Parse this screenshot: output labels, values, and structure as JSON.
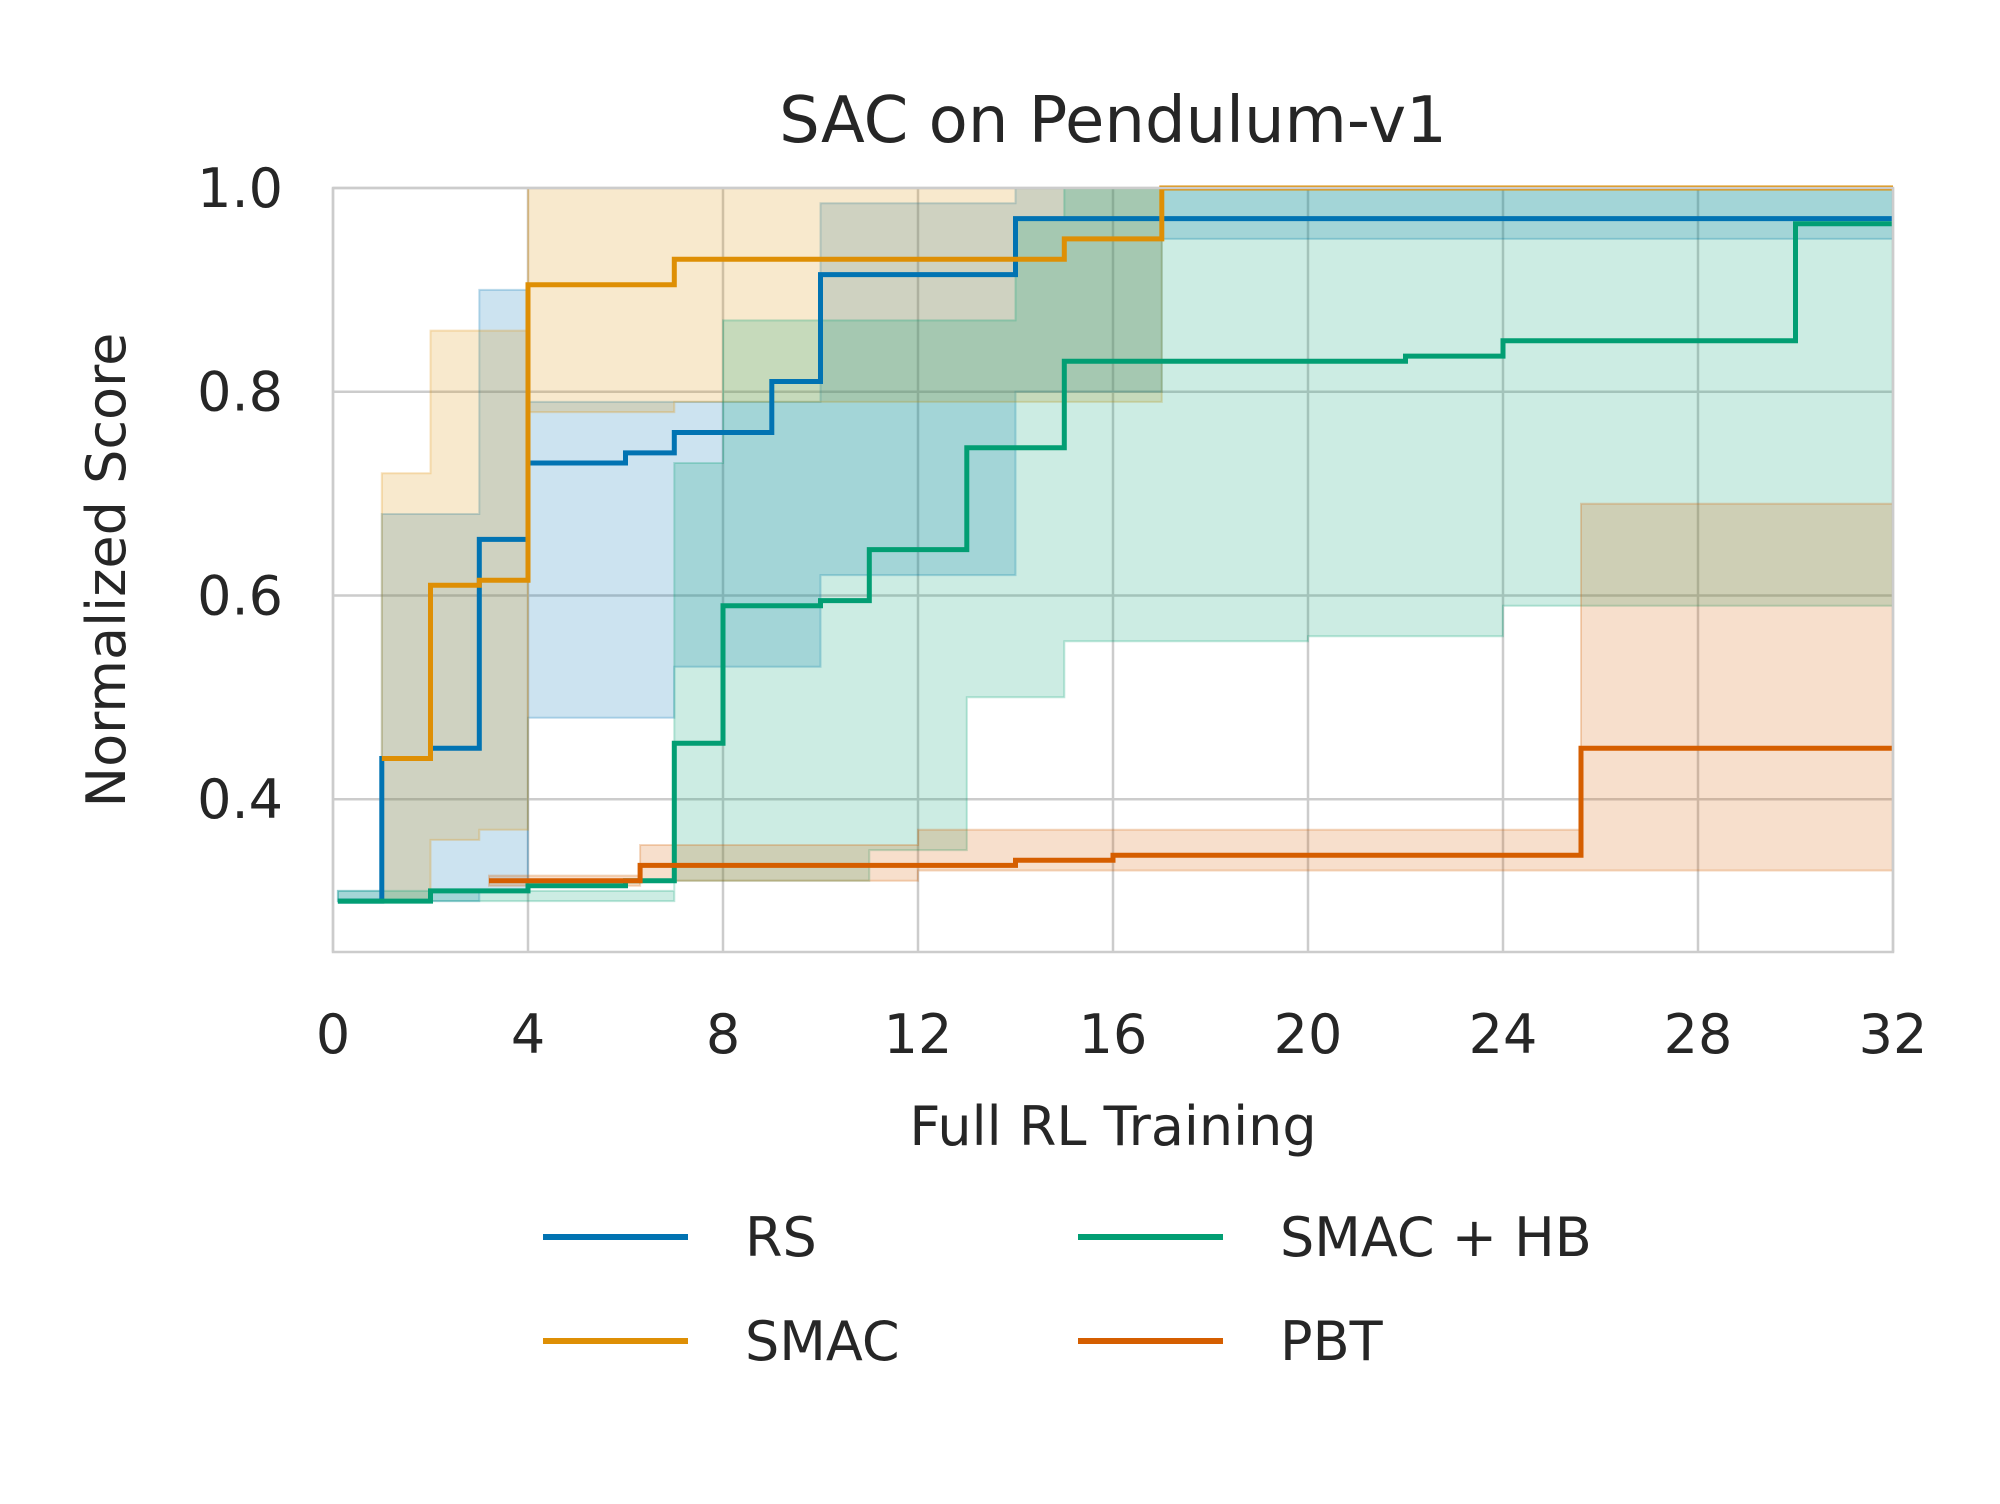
{
  "chart_data": {
    "type": "line",
    "title": "SAC on Pendulum-v1",
    "xlabel": "Full RL Training",
    "ylabel": "Normalized Score",
    "xlim": [
      0,
      32
    ],
    "ylim": [
      0.25,
      1.0
    ],
    "xticks": [
      0,
      4,
      8,
      12,
      16,
      20,
      24,
      28,
      32
    ],
    "yticks": [
      0.4,
      0.6,
      0.8,
      1.0
    ],
    "xtick_labels": [
      "0",
      "4",
      "8",
      "12",
      "16",
      "20",
      "24",
      "28",
      "32"
    ],
    "ytick_labels": [
      "0.4",
      "0.6",
      "0.8",
      "1.0"
    ],
    "grid": true,
    "legend_position": "bottom-center",
    "series": [
      {
        "name": "RS",
        "color": "#0173b2",
        "mean": [
          [
            0.1,
            0.3
          ],
          [
            1.0,
            0.44
          ],
          [
            2.0,
            0.45
          ],
          [
            3.0,
            0.655
          ],
          [
            4.0,
            0.73
          ],
          [
            6.0,
            0.74
          ],
          [
            7.0,
            0.76
          ],
          [
            9.0,
            0.81
          ],
          [
            10.0,
            0.915
          ],
          [
            14.0,
            0.97
          ],
          [
            32.0,
            0.97
          ]
        ],
        "lower": [
          [
            0.1,
            0.3
          ],
          [
            2.0,
            0.3
          ],
          [
            3.0,
            0.31
          ],
          [
            4.0,
            0.48
          ],
          [
            7.0,
            0.53
          ],
          [
            10.0,
            0.62
          ],
          [
            14.0,
            0.8
          ],
          [
            17.0,
            0.95
          ],
          [
            32.0,
            0.9
          ]
        ],
        "upper": [
          [
            0.1,
            0.31
          ],
          [
            1.0,
            0.68
          ],
          [
            3.0,
            0.9
          ],
          [
            4.0,
            0.79
          ],
          [
            7.0,
            0.79
          ],
          [
            10.0,
            0.985
          ],
          [
            14.0,
            1.0
          ],
          [
            32.0,
            1.0
          ]
        ]
      },
      {
        "name": "SMAC",
        "color": "#de8f05",
        "mean": [
          [
            1.0,
            0.44
          ],
          [
            2.0,
            0.61
          ],
          [
            3.0,
            0.615
          ],
          [
            4.0,
            0.905
          ],
          [
            7.0,
            0.93
          ],
          [
            14.0,
            0.93
          ],
          [
            15.0,
            0.95
          ],
          [
            17.0,
            1.0
          ],
          [
            32.0,
            1.0
          ]
        ],
        "lower": [
          [
            1.0,
            0.3
          ],
          [
            2.0,
            0.36
          ],
          [
            3.0,
            0.37
          ],
          [
            4.0,
            0.78
          ],
          [
            7.0,
            0.79
          ],
          [
            14.0,
            0.79
          ],
          [
            17.0,
            1.0
          ],
          [
            32.0,
            1.0
          ]
        ],
        "upper": [
          [
            1.0,
            0.72
          ],
          [
            2.0,
            0.86
          ],
          [
            4.0,
            1.0
          ],
          [
            32.0,
            1.0
          ]
        ]
      },
      {
        "name": "SMAC + HB",
        "color": "#029e73",
        "mean": [
          [
            0.1,
            0.3
          ],
          [
            2.0,
            0.31
          ],
          [
            4.0,
            0.315
          ],
          [
            6.0,
            0.32
          ],
          [
            7.0,
            0.455
          ],
          [
            8.0,
            0.59
          ],
          [
            10.0,
            0.595
          ],
          [
            11.0,
            0.645
          ],
          [
            13.0,
            0.745
          ],
          [
            15.0,
            0.83
          ],
          [
            20.0,
            0.83
          ],
          [
            22.0,
            0.835
          ],
          [
            24.0,
            0.85
          ],
          [
            30.0,
            0.965
          ],
          [
            32.0,
            0.965
          ]
        ],
        "lower": [
          [
            0.1,
            0.3
          ],
          [
            7.0,
            0.32
          ],
          [
            11.0,
            0.35
          ],
          [
            13.0,
            0.5
          ],
          [
            15.0,
            0.555
          ],
          [
            20.0,
            0.56
          ],
          [
            24.0,
            0.59
          ],
          [
            32.0,
            0.59
          ]
        ],
        "upper": [
          [
            0.1,
            0.31
          ],
          [
            7.0,
            0.73
          ],
          [
            8.0,
            0.87
          ],
          [
            10.0,
            0.87
          ],
          [
            14.0,
            0.97
          ],
          [
            15.0,
            1.0
          ],
          [
            32.0,
            1.0
          ]
        ]
      },
      {
        "name": "PBT",
        "color": "#d55e00",
        "mean": [
          [
            3.2,
            0.32
          ],
          [
            6.3,
            0.335
          ],
          [
            12.0,
            0.335
          ],
          [
            14.0,
            0.34
          ],
          [
            16.0,
            0.345
          ],
          [
            25.6,
            0.45
          ],
          [
            32.0,
            0.45
          ]
        ],
        "lower": [
          [
            3.2,
            0.315
          ],
          [
            6.3,
            0.32
          ],
          [
            12.0,
            0.33
          ],
          [
            25.6,
            0.33
          ],
          [
            32.0,
            0.33
          ]
        ],
        "upper": [
          [
            3.2,
            0.325
          ],
          [
            6.3,
            0.355
          ],
          [
            12.0,
            0.37
          ],
          [
            25.6,
            0.69
          ],
          [
            32.0,
            0.69
          ]
        ]
      }
    ]
  }
}
